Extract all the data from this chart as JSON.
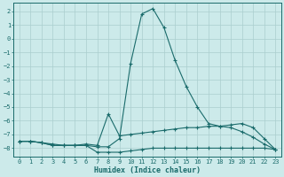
{
  "xlabel": "Humidex (Indice chaleur)",
  "bg_color": "#cceaea",
  "line_color": "#1a6b6b",
  "grid_color": "#aacece",
  "xlim": [
    -0.5,
    23.5
  ],
  "ylim": [
    -8.6,
    2.6
  ],
  "xticks": [
    0,
    1,
    2,
    3,
    4,
    5,
    6,
    7,
    8,
    9,
    10,
    11,
    12,
    13,
    14,
    15,
    16,
    17,
    18,
    19,
    20,
    21,
    22,
    23
  ],
  "yticks": [
    2,
    1,
    0,
    -1,
    -2,
    -3,
    -4,
    -5,
    -6,
    -7,
    -8
  ],
  "series_peak_x": [
    0,
    1,
    2,
    3,
    4,
    5,
    6,
    7,
    8,
    9,
    10,
    11,
    12,
    13,
    14,
    15,
    16,
    17,
    18,
    19,
    20,
    21,
    22,
    23
  ],
  "series_peak_y": [
    -7.5,
    -7.5,
    -7.6,
    -7.7,
    -7.8,
    -7.8,
    -7.8,
    -7.9,
    -7.9,
    -7.3,
    -1.8,
    1.8,
    2.2,
    0.8,
    -1.6,
    -3.5,
    -5.0,
    -6.2,
    -6.4,
    -6.5,
    -6.8,
    -7.2,
    -7.7,
    -8.1
  ],
  "series_mid_x": [
    0,
    1,
    2,
    3,
    4,
    5,
    6,
    7,
    8,
    9,
    10,
    11,
    12,
    13,
    14,
    15,
    16,
    17,
    18,
    19,
    20,
    21,
    22,
    23
  ],
  "series_mid_y": [
    -7.5,
    -7.5,
    -7.6,
    -7.8,
    -7.8,
    -7.8,
    -7.7,
    -7.8,
    -5.5,
    -7.1,
    -7.0,
    -6.9,
    -6.8,
    -6.7,
    -6.6,
    -6.5,
    -6.5,
    -6.4,
    -6.4,
    -6.3,
    -6.2,
    -6.5,
    -7.3,
    -8.1
  ],
  "series_flat_x": [
    0,
    1,
    2,
    3,
    4,
    5,
    6,
    7,
    8,
    9,
    10,
    11,
    12,
    13,
    14,
    15,
    16,
    17,
    18,
    19,
    20,
    21,
    22,
    23
  ],
  "series_flat_y": [
    -7.5,
    -7.5,
    -7.6,
    -7.8,
    -7.8,
    -7.8,
    -7.8,
    -8.3,
    -8.3,
    -8.3,
    -8.2,
    -8.1,
    -8.0,
    -8.0,
    -8.0,
    -8.0,
    -8.0,
    -8.0,
    -8.0,
    -8.0,
    -8.0,
    -8.0,
    -8.0,
    -8.1
  ]
}
